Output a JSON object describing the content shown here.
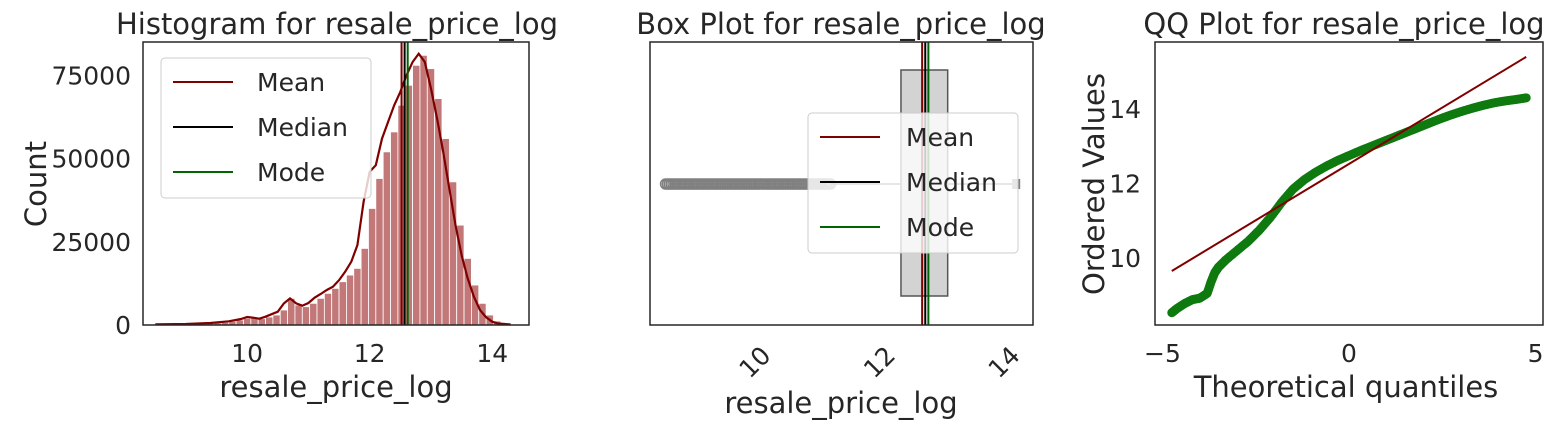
{
  "chart_data": [
    {
      "type": "histogram",
      "title": "Histogram for resale_price_log",
      "xlabel": "resale_price_log",
      "ylabel": "Count",
      "xlim": [
        8.3,
        14.6
      ],
      "ylim": [
        0,
        85000
      ],
      "xticks": [
        10,
        12,
        14
      ],
      "yticks": [
        0,
        25000,
        50000,
        75000
      ],
      "bin_width": 0.12,
      "bins": [
        {
          "x": 8.5,
          "count": 200
        },
        {
          "x": 8.62,
          "count": 200
        },
        {
          "x": 8.74,
          "count": 200
        },
        {
          "x": 8.86,
          "count": 250
        },
        {
          "x": 8.98,
          "count": 250
        },
        {
          "x": 9.1,
          "count": 300
        },
        {
          "x": 9.22,
          "count": 400
        },
        {
          "x": 9.34,
          "count": 500
        },
        {
          "x": 9.46,
          "count": 600
        },
        {
          "x": 9.58,
          "count": 800
        },
        {
          "x": 9.7,
          "count": 1100
        },
        {
          "x": 9.82,
          "count": 1500
        },
        {
          "x": 9.94,
          "count": 2000
        },
        {
          "x": 10.06,
          "count": 2200
        },
        {
          "x": 10.18,
          "count": 1900
        },
        {
          "x": 10.3,
          "count": 2400
        },
        {
          "x": 10.42,
          "count": 3000
        },
        {
          "x": 10.54,
          "count": 4500
        },
        {
          "x": 10.66,
          "count": 8000
        },
        {
          "x": 10.78,
          "count": 6000
        },
        {
          "x": 10.9,
          "count": 5500
        },
        {
          "x": 11.02,
          "count": 6500
        },
        {
          "x": 11.14,
          "count": 8000
        },
        {
          "x": 11.26,
          "count": 9500
        },
        {
          "x": 11.38,
          "count": 11000
        },
        {
          "x": 11.5,
          "count": 13000
        },
        {
          "x": 11.62,
          "count": 15000
        },
        {
          "x": 11.74,
          "count": 17000
        },
        {
          "x": 11.86,
          "count": 23000
        },
        {
          "x": 11.98,
          "count": 35000
        },
        {
          "x": 12.1,
          "count": 44000
        },
        {
          "x": 12.22,
          "count": 52000
        },
        {
          "x": 12.34,
          "count": 58000
        },
        {
          "x": 12.46,
          "count": 66000
        },
        {
          "x": 12.58,
          "count": 72000
        },
        {
          "x": 12.7,
          "count": 78000
        },
        {
          "x": 12.82,
          "count": 81000
        },
        {
          "x": 12.94,
          "count": 77000
        },
        {
          "x": 13.06,
          "count": 68000
        },
        {
          "x": 13.18,
          "count": 56000
        },
        {
          "x": 13.3,
          "count": 43000
        },
        {
          "x": 13.42,
          "count": 30000
        },
        {
          "x": 13.54,
          "count": 20000
        },
        {
          "x": 13.66,
          "count": 12000
        },
        {
          "x": 13.78,
          "count": 6500
        },
        {
          "x": 13.9,
          "count": 3000
        },
        {
          "x": 14.02,
          "count": 1200
        },
        {
          "x": 14.14,
          "count": 400
        }
      ],
      "kde": {
        "x": [
          8.5,
          9.0,
          9.4,
          9.7,
          9.9,
          10.0,
          10.1,
          10.2,
          10.3,
          10.5,
          10.6,
          10.7,
          10.8,
          10.9,
          11.0,
          11.1,
          11.2,
          11.3,
          11.4,
          11.5,
          11.6,
          11.7,
          11.8,
          11.9,
          12.0,
          12.1,
          12.2,
          12.3,
          12.4,
          12.5,
          12.6,
          12.7,
          12.8,
          12.9,
          13.0,
          13.1,
          13.2,
          13.3,
          13.4,
          13.5,
          13.6,
          13.7,
          13.8,
          13.9,
          14.0,
          14.1,
          14.3
        ],
        "y": [
          200,
          300,
          600,
          1100,
          1800,
          2400,
          2200,
          1900,
          2500,
          4000,
          6500,
          8000,
          6500,
          5800,
          6600,
          8200,
          9300,
          10500,
          11500,
          13500,
          16000,
          19000,
          24000,
          37000,
          46000,
          48000,
          56000,
          61000,
          66000,
          70000,
          75000,
          79000,
          81500,
          79000,
          71000,
          62000,
          52000,
          41000,
          30000,
          21000,
          14000,
          8500,
          4500,
          2300,
          1000,
          450,
          150
        ]
      },
      "lines": {
        "mean": 12.52,
        "median": 12.57,
        "mode": 12.62
      },
      "legend": [
        "Mean",
        "Median",
        "Mode"
      ],
      "legend_position": "upper-left"
    },
    {
      "type": "box",
      "title": "Box Plot for resale_price_log",
      "xlabel": "resale_price_log",
      "xlim": [
        8.15,
        14.3
      ],
      "xticks": [
        10,
        12,
        14
      ],
      "box": {
        "q1": 12.18,
        "median": 12.57,
        "q3": 12.93,
        "whisker_low": 11.05,
        "whisker_high": 14.03
      },
      "outliers_low_range": [
        8.4,
        11.05
      ],
      "lines": {
        "mean": 12.52,
        "median": 12.57,
        "mode": 12.62
      },
      "legend": [
        "Mean",
        "Median",
        "Mode"
      ],
      "legend_position": "center-right"
    },
    {
      "type": "scatter",
      "title": "QQ Plot for resale_price_log",
      "xlabel": "Theoretical quantiles",
      "ylabel": "Ordered Values",
      "xlim": [
        -5.2,
        5.2
      ],
      "ylim": [
        8.2,
        15.8
      ],
      "xticks": [
        -5,
        0,
        5
      ],
      "yticks": [
        10,
        12,
        14
      ],
      "points": {
        "x": [
          -4.75,
          -4.6,
          -4.4,
          -4.2,
          -4.0,
          -3.8,
          -3.7,
          -3.6,
          -3.5,
          -3.3,
          -3.0,
          -2.7,
          -2.4,
          -2.1,
          -1.8,
          -1.5,
          -1.2,
          -0.9,
          -0.6,
          -0.3,
          0.0,
          0.3,
          0.6,
          0.9,
          1.2,
          1.5,
          1.8,
          2.1,
          2.4,
          2.7,
          3.0,
          3.3,
          3.6,
          3.9,
          4.2,
          4.5,
          4.75
        ],
        "y": [
          8.53,
          8.65,
          8.78,
          8.88,
          8.92,
          9.05,
          9.35,
          9.6,
          9.75,
          9.95,
          10.2,
          10.45,
          10.75,
          11.1,
          11.5,
          11.85,
          12.1,
          12.3,
          12.47,
          12.62,
          12.75,
          12.88,
          13.0,
          13.12,
          13.24,
          13.36,
          13.48,
          13.6,
          13.72,
          13.83,
          13.93,
          14.02,
          14.1,
          14.17,
          14.22,
          14.26,
          14.3
        ]
      },
      "reference_line": {
        "x": [
          -4.75,
          4.75
        ],
        "y": [
          9.65,
          15.4
        ]
      }
    }
  ],
  "colors": {
    "mean": "#800000",
    "median": "#000000",
    "mode": "#006400",
    "hist_bar": "#b76060",
    "kde": "#800000",
    "box_fill": "#d3d3d3",
    "outlier": "#808080",
    "qq_points": "#0f7a0f",
    "qq_line": "#800000"
  }
}
